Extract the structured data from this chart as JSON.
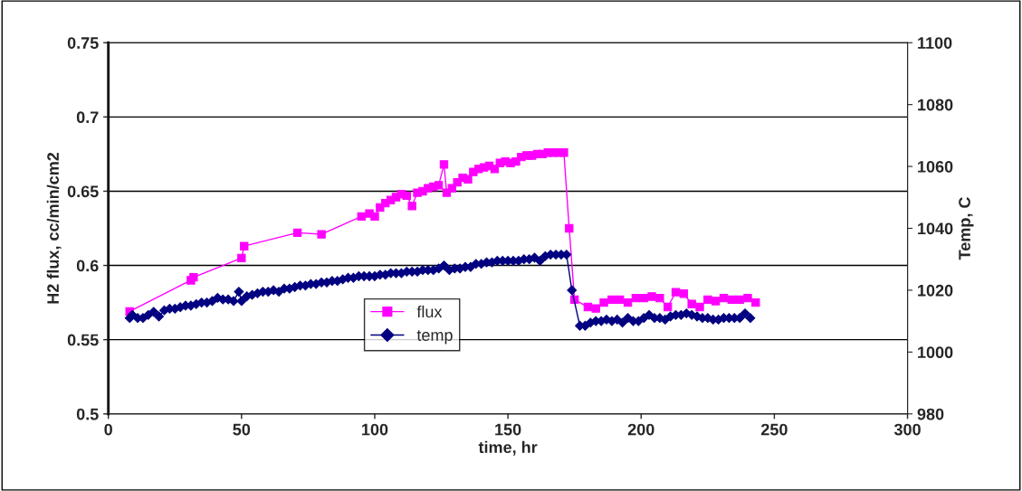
{
  "chart_data": {
    "type": "line",
    "xlabel": "time, hr",
    "ylabel": "H2 flux, cc/min/cm2",
    "y2label": "Temp, C",
    "xlim": [
      0,
      300
    ],
    "xticks": [
      0,
      50,
      100,
      150,
      200,
      250,
      300
    ],
    "ylim": [
      0.5,
      0.75
    ],
    "yticks": [
      0.5,
      0.55,
      0.6,
      0.65,
      0.7,
      0.75
    ],
    "y2lim": [
      980,
      1100
    ],
    "y2ticks": [
      980,
      1000,
      1020,
      1040,
      1060,
      1080,
      1100
    ],
    "grid": "y",
    "legend": "center",
    "series": [
      {
        "name": "flux",
        "color": "#ff00ff",
        "marker": "square",
        "x": [
          8,
          31,
          32,
          50,
          51,
          71,
          80,
          95,
          98,
          100,
          102,
          104,
          106,
          108,
          110,
          112,
          114,
          116,
          118,
          120,
          122,
          124,
          126,
          127,
          129,
          131,
          133,
          135,
          137,
          139,
          141,
          143,
          145,
          147,
          149,
          151,
          153,
          155,
          157,
          159,
          161,
          163,
          165,
          167,
          169,
          171,
          173,
          175,
          180,
          183,
          186,
          189,
          192,
          195,
          198,
          201,
          204,
          207,
          210,
          213,
          216,
          219,
          222,
          225,
          228,
          231,
          234,
          237,
          240,
          243
        ],
        "values": [
          0.569,
          0.59,
          0.592,
          0.605,
          0.613,
          0.622,
          0.621,
          0.633,
          0.635,
          0.633,
          0.639,
          0.642,
          0.644,
          0.646,
          0.648,
          0.647,
          0.64,
          0.649,
          0.65,
          0.652,
          0.653,
          0.654,
          0.668,
          0.649,
          0.652,
          0.656,
          0.659,
          0.658,
          0.663,
          0.665,
          0.666,
          0.667,
          0.665,
          0.669,
          0.67,
          0.669,
          0.67,
          0.673,
          0.674,
          0.674,
          0.675,
          0.675,
          0.676,
          0.676,
          0.676,
          0.676,
          0.625,
          0.577,
          0.572,
          0.571,
          0.575,
          0.577,
          0.577,
          0.575,
          0.578,
          0.578,
          0.579,
          0.578,
          0.572,
          0.582,
          0.581,
          0.574,
          0.572,
          0.577,
          0.576,
          0.578,
          0.577,
          0.577,
          0.578,
          0.575
        ]
      },
      {
        "name": "temp",
        "color": "#000080",
        "marker": "diamond",
        "axis": "y2",
        "x": [
          8,
          9,
          11,
          13,
          15,
          17,
          19,
          21,
          23,
          25,
          27,
          29,
          31,
          33,
          35,
          37,
          39,
          41,
          43,
          45,
          47,
          49,
          50,
          52,
          54,
          56,
          58,
          60,
          62,
          64,
          66,
          68,
          70,
          72,
          74,
          76,
          78,
          80,
          82,
          84,
          86,
          88,
          90,
          92,
          94,
          96,
          98,
          100,
          102,
          104,
          106,
          108,
          110,
          112,
          114,
          116,
          118,
          120,
          122,
          124,
          126,
          128,
          130,
          132,
          134,
          136,
          138,
          140,
          142,
          144,
          146,
          148,
          150,
          152,
          154,
          156,
          158,
          160,
          162,
          164,
          166,
          168,
          170,
          172,
          174,
          177,
          179,
          181,
          183,
          185,
          187,
          189,
          191,
          193,
          195,
          197,
          199,
          201,
          203,
          205,
          207,
          209,
          211,
          213,
          215,
          217,
          219,
          221,
          223,
          225,
          227,
          229,
          231,
          233,
          235,
          237,
          239,
          241
        ],
        "values": [
          1011,
          1012,
          1011,
          1011,
          1012,
          1013,
          1011.5,
          1013.5,
          1014,
          1014,
          1014.5,
          1015,
          1015,
          1015.5,
          1016,
          1016,
          1016.5,
          1017.5,
          1017,
          1017,
          1016.5,
          1019.5,
          1016.5,
          1018,
          1018.5,
          1019,
          1019.5,
          1019.5,
          1020,
          1019.5,
          1020.5,
          1020.5,
          1021,
          1021.5,
          1021.5,
          1022,
          1022,
          1022.5,
          1022.5,
          1023,
          1023,
          1023.5,
          1024,
          1024,
          1024.5,
          1024.5,
          1024.5,
          1024.5,
          1025,
          1025,
          1025.5,
          1025.5,
          1025.5,
          1026,
          1026,
          1026,
          1026.5,
          1026.5,
          1026.5,
          1027,
          1028,
          1026.5,
          1027,
          1027,
          1027.5,
          1027.5,
          1028.5,
          1028.5,
          1029,
          1029,
          1029.5,
          1029.5,
          1029.5,
          1029.5,
          1029.5,
          1030,
          1030,
          1030.5,
          1029.5,
          1031,
          1031.5,
          1031.5,
          1031.5,
          1031.5,
          1020,
          1008.5,
          1008.5,
          1009.5,
          1010,
          1010,
          1010.5,
          1010,
          1010.5,
          1009.5,
          1011,
          1010,
          1010,
          1011,
          1012,
          1011,
          1011,
          1010.5,
          1011.5,
          1012,
          1012,
          1012.5,
          1012,
          1011.5,
          1011,
          1011,
          1010.5,
          1010.5,
          1011,
          1011,
          1011,
          1011,
          1012.5,
          1011
        ]
      }
    ]
  }
}
